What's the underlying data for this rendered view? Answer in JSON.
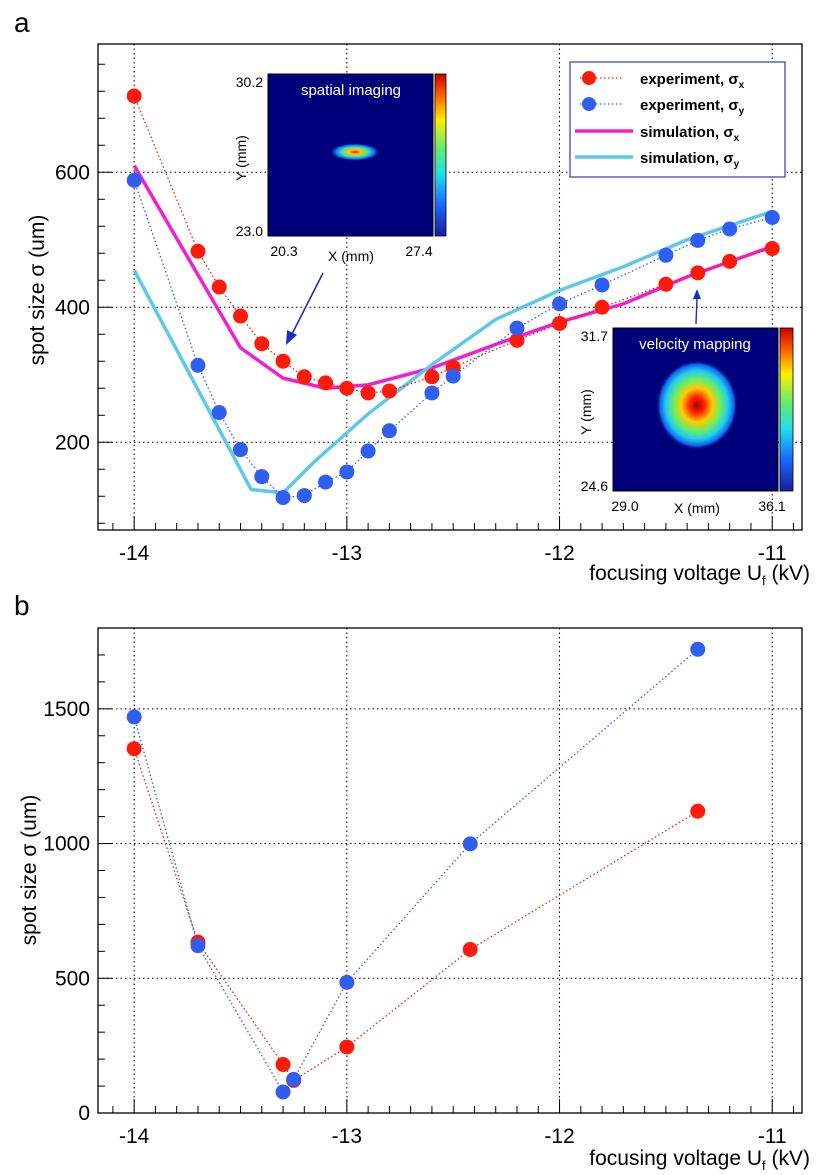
{
  "colors": {
    "exp_x": "#ff1a0a",
    "exp_y": "#2f5ef0",
    "sim_x": "#f020d0",
    "sim_y": "#5cc8ea",
    "inset_bg": "#00007a",
    "arrow": "#1a2fbf"
  },
  "chart_data": [
    {
      "panel": "a",
      "type": "scatter",
      "xlabel": "focusing voltage U",
      "xlabel_sub": "f",
      "xlabel_unit": " (kV)",
      "ylabel": "spot size σ (um)",
      "xlim": [
        -14.17,
        -10.86
      ],
      "ylim": [
        70,
        790
      ],
      "xticks": [
        -14,
        -13,
        -12,
        -11
      ],
      "yticks": [
        200,
        400,
        600
      ],
      "grid": true,
      "legend": {
        "position": "top-right"
      },
      "series": [
        {
          "name": "experiment, σx",
          "legend_main": "experiment, σ",
          "legend_sub": "x",
          "kind": "points",
          "color": "exp_x",
          "x": [
            -14.0,
            -13.7,
            -13.6,
            -13.5,
            -13.4,
            -13.3,
            -13.2,
            -13.1,
            -13.0,
            -12.9,
            -12.8,
            -12.6,
            -12.5,
            -12.2,
            -12.0,
            -11.8,
            -11.5,
            -11.35,
            -11.2,
            -11.0
          ],
          "y": [
            713,
            483,
            430,
            387,
            346,
            320,
            297,
            288,
            280,
            273,
            276,
            297,
            311,
            351,
            376,
            400,
            434,
            451,
            468,
            487
          ]
        },
        {
          "name": "experiment, σy",
          "legend_main": "experiment, σ",
          "legend_sub": "y",
          "kind": "points",
          "color": "exp_y",
          "x": [
            -14.0,
            -13.7,
            -13.6,
            -13.5,
            -13.4,
            -13.3,
            -13.2,
            -13.1,
            -13.0,
            -12.9,
            -12.8,
            -12.6,
            -12.5,
            -12.2,
            -12.0,
            -11.8,
            -11.5,
            -11.35,
            -11.2,
            -11.0
          ],
          "y": [
            588,
            314,
            244,
            189,
            149,
            118,
            121,
            141,
            156,
            187,
            217,
            273,
            298,
            369,
            405,
            433,
            477,
            499,
            516,
            533
          ]
        },
        {
          "name": "simulation, σx",
          "legend_main": "simulation, σ",
          "legend_sub": "x",
          "kind": "line",
          "color": "sim_x",
          "x": [
            -14.0,
            -13.5,
            -13.3,
            -13.1,
            -12.9,
            -12.6,
            -12.3,
            -12.0,
            -11.7,
            -11.4,
            -11.0
          ],
          "y": [
            610,
            340,
            295,
            280,
            285,
            310,
            345,
            378,
            405,
            445,
            490
          ]
        },
        {
          "name": "simulation, σy",
          "legend_main": "simulation, σ",
          "legend_sub": "y",
          "kind": "line",
          "color": "sim_y",
          "x": [
            -14.0,
            -13.45,
            -13.3,
            -13.15,
            -12.9,
            -12.6,
            -12.3,
            -12.0,
            -11.7,
            -11.4,
            -11.0
          ],
          "y": [
            455,
            130,
            125,
            172,
            242,
            315,
            382,
            425,
            460,
            500,
            542
          ]
        }
      ],
      "insets": [
        {
          "title": "spatial imaging",
          "xlabel": "X (mm)",
          "ylabel": "Y (mm)",
          "x_range": [
            "20.3",
            "27.4"
          ],
          "y_range": [
            "23.0",
            "30.2"
          ]
        },
        {
          "title": "velocity mapping",
          "xlabel": "X (mm)",
          "ylabel": "Y (mm)",
          "x_range": [
            "29.0",
            "36.1"
          ],
          "y_range": [
            "24.6",
            "31.7"
          ]
        }
      ]
    },
    {
      "panel": "b",
      "type": "scatter",
      "xlabel": "focusing voltage U",
      "xlabel_sub": "f",
      "xlabel_unit": " (kV)",
      "ylabel": "spot size σ (um)",
      "xlim": [
        -14.17,
        -10.86
      ],
      "ylim": [
        0,
        1800
      ],
      "xticks": [
        -14,
        -13,
        -12,
        -11
      ],
      "yticks": [
        0,
        500,
        1000,
        1500
      ],
      "grid": true,
      "series": [
        {
          "name": "experiment, σx",
          "kind": "points",
          "color": "exp_x",
          "x": [
            -14.0,
            -13.7,
            -13.3,
            -13.25,
            -13.0,
            -12.42,
            -11.35
          ],
          "y": [
            1352,
            634,
            180,
            121,
            245,
            607,
            1120
          ]
        },
        {
          "name": "experiment, σy",
          "kind": "points",
          "color": "exp_y",
          "x": [
            -14.0,
            -13.7,
            -13.3,
            -13.25,
            -13.0,
            -12.42,
            -11.35
          ],
          "y": [
            1470,
            621,
            78,
            125,
            485,
            999,
            1721
          ]
        }
      ]
    }
  ]
}
